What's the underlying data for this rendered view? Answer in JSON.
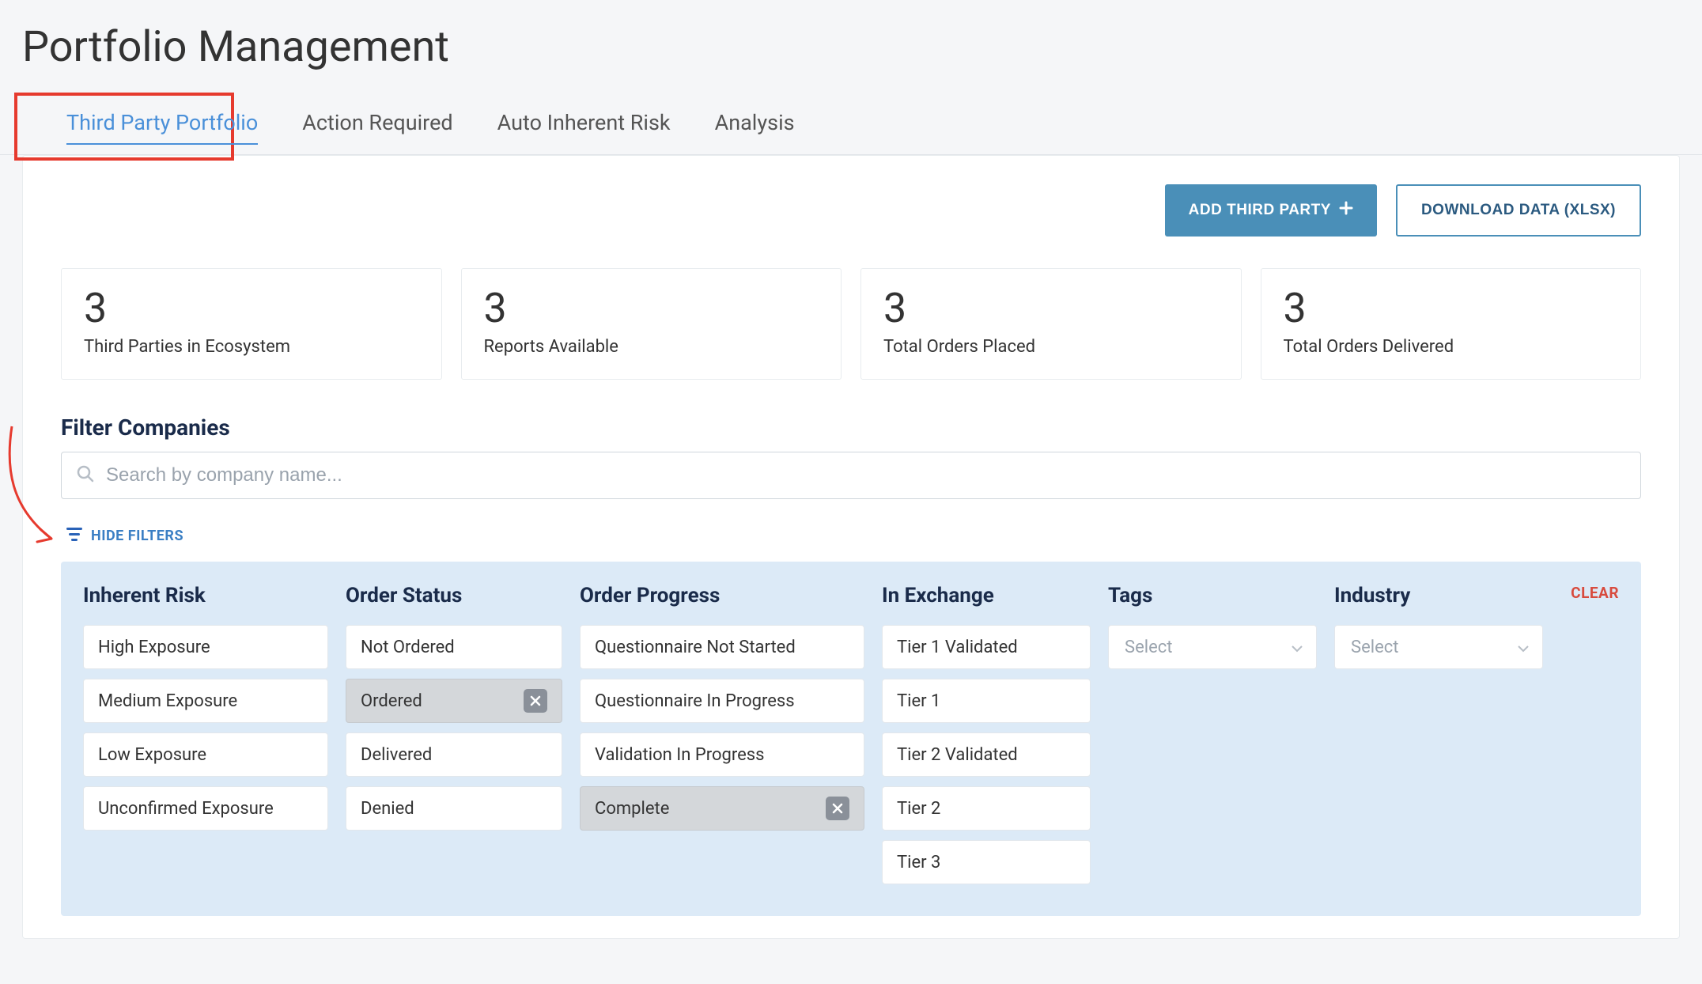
{
  "page_title": "Portfolio Management",
  "tabs": [
    {
      "label": "Third Party Portfolio",
      "active": true
    },
    {
      "label": "Action Required",
      "active": false
    },
    {
      "label": "Auto Inherent Risk",
      "active": false
    },
    {
      "label": "Analysis",
      "active": false
    }
  ],
  "actions": {
    "add_label": "ADD THIRD PARTY",
    "download_label": "DOWNLOAD DATA (XLSX)"
  },
  "stats": [
    {
      "value": "3",
      "label": "Third Parties in Ecosystem"
    },
    {
      "value": "3",
      "label": "Reports Available"
    },
    {
      "value": "3",
      "label": "Total Orders Placed"
    },
    {
      "value": "3",
      "label": "Total Orders Delivered"
    }
  ],
  "filter_section": {
    "heading": "Filter Companies",
    "search_placeholder": "Search by company name...",
    "hide_filters_label": "HIDE FILTERS",
    "clear_label": "CLEAR"
  },
  "filter_columns": [
    {
      "title": "Inherent Risk",
      "width": "col-w-310",
      "options": [
        {
          "label": "High Exposure",
          "selected": false
        },
        {
          "label": "Medium Exposure",
          "selected": false
        },
        {
          "label": "Low Exposure",
          "selected": false
        },
        {
          "label": "Unconfirmed Exposure",
          "selected": false
        }
      ]
    },
    {
      "title": "Order Status",
      "width": "col-w-274",
      "options": [
        {
          "label": "Not Ordered",
          "selected": false
        },
        {
          "label": "Ordered",
          "selected": true
        },
        {
          "label": "Delivered",
          "selected": false
        },
        {
          "label": "Denied",
          "selected": false
        }
      ]
    },
    {
      "title": "Order Progress",
      "width": "col-w-360",
      "options": [
        {
          "label": "Questionnaire Not Started",
          "selected": false
        },
        {
          "label": "Questionnaire In Progress",
          "selected": false
        },
        {
          "label": "Validation In Progress",
          "selected": false
        },
        {
          "label": "Complete",
          "selected": true
        }
      ]
    },
    {
      "title": "In Exchange",
      "width": "col-w-264",
      "options": [
        {
          "label": "Tier 1 Validated",
          "selected": false
        },
        {
          "label": "Tier 1",
          "selected": false
        },
        {
          "label": "Tier 2 Validated",
          "selected": false
        },
        {
          "label": "Tier 2",
          "selected": false
        },
        {
          "label": "Tier 3",
          "selected": false
        }
      ]
    }
  ],
  "select_filters": [
    {
      "title": "Tags",
      "placeholder": "Select",
      "width": "col-w-264"
    },
    {
      "title": "Industry",
      "placeholder": "Select",
      "width": "col-w-264"
    }
  ],
  "colors": {
    "accent": "#4a8fb8",
    "link": "#3b7fc4",
    "highlight_border": "#e63a2e",
    "panel_bg": "#dceaf7",
    "clear": "#d84b3e"
  }
}
